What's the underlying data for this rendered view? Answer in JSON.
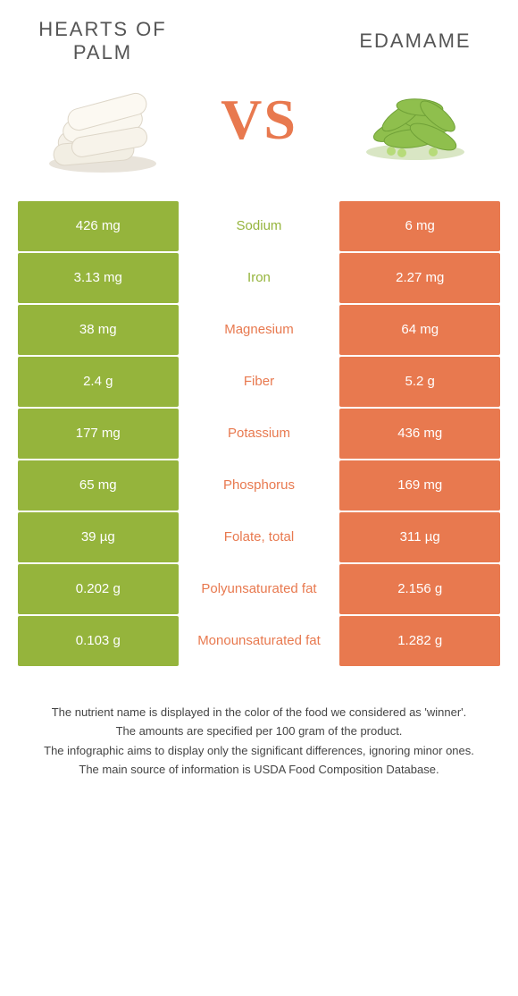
{
  "colors": {
    "left_bg": "#95b43c",
    "right_bg": "#e8794f",
    "vs": "#e8794f"
  },
  "foods": {
    "left": {
      "title": "HEARTS OF PALM"
    },
    "right": {
      "title": "EDAMAME"
    }
  },
  "vs_text": "VS",
  "rows": [
    {
      "left": "426 mg",
      "label": "Sodium",
      "right": "6 mg",
      "winner": "left"
    },
    {
      "left": "3.13 mg",
      "label": "Iron",
      "right": "2.27 mg",
      "winner": "left"
    },
    {
      "left": "38 mg",
      "label": "Magnesium",
      "right": "64 mg",
      "winner": "right"
    },
    {
      "left": "2.4 g",
      "label": "Fiber",
      "right": "5.2 g",
      "winner": "right"
    },
    {
      "left": "177 mg",
      "label": "Potassium",
      "right": "436 mg",
      "winner": "right"
    },
    {
      "left": "65 mg",
      "label": "Phosphorus",
      "right": "169 mg",
      "winner": "right"
    },
    {
      "left": "39 µg",
      "label": "Folate, total",
      "right": "311 µg",
      "winner": "right"
    },
    {
      "left": "0.202 g",
      "label": "Polyunsaturated fat",
      "right": "2.156 g",
      "winner": "right"
    },
    {
      "left": "0.103 g",
      "label": "Monounsaturated fat",
      "right": "1.282 g",
      "winner": "right"
    }
  ],
  "footnotes": [
    "The nutrient name is displayed in the color of the food we considered as 'winner'.",
    "The amounts are specified per 100 gram of the product.",
    "The infographic aims to display only the significant differences, ignoring minor ones.",
    "The main source of information is USDA Food Composition Database."
  ]
}
